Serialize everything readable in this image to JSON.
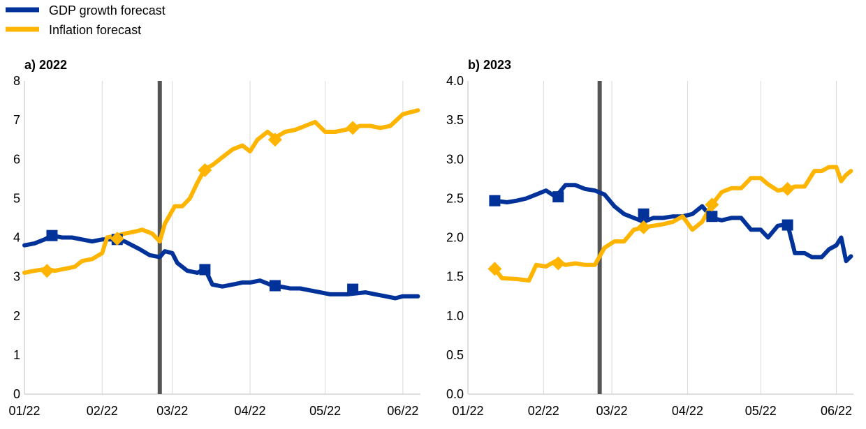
{
  "legend": [
    {
      "label": "GDP growth forecast",
      "color": "#003299"
    },
    {
      "label": "Inflation forecast",
      "color": "#FFB400"
    }
  ],
  "colors": {
    "gdp": "#003299",
    "inflation": "#FFB400",
    "event_line": "#555555",
    "grid": "#D9D9D9"
  },
  "x_ticks": [
    "01/22",
    "02/22",
    "03/22",
    "04/22",
    "05/22",
    "06/22"
  ],
  "chart_data": [
    {
      "type": "line",
      "title": "a) 2022",
      "xlabel": "",
      "ylabel": "",
      "x_ticks": [
        "01/22",
        "02/22",
        "03/22",
        "04/22",
        "05/22",
        "06/22"
      ],
      "ylim": [
        0,
        8
      ],
      "y_ticks": [
        "0",
        "1",
        "2",
        "3",
        "4",
        "5",
        "6",
        "7",
        "8"
      ],
      "grid": "vertical",
      "legend_position": "top-left",
      "event_line_date": "2022-02-24",
      "series": [
        {
          "name": "GDP growth forecast",
          "color": "#003299",
          "points": [
            [
              "2022-01-01",
              3.8
            ],
            [
              "2022-01-05",
              3.85
            ],
            [
              "2022-01-09",
              3.95
            ],
            [
              "2022-01-12",
              4.05
            ],
            [
              "2022-01-16",
              4.0
            ],
            [
              "2022-01-20",
              4.0
            ],
            [
              "2022-01-24",
              3.95
            ],
            [
              "2022-01-28",
              3.9
            ],
            [
              "2022-02-01",
              3.95
            ],
            [
              "2022-02-07",
              3.95
            ],
            [
              "2022-02-10",
              3.9
            ],
            [
              "2022-02-13",
              3.8
            ],
            [
              "2022-02-16",
              3.7
            ],
            [
              "2022-02-20",
              3.55
            ],
            [
              "2022-02-24",
              3.5
            ],
            [
              "2022-02-26",
              3.65
            ],
            [
              "2022-03-01",
              3.6
            ],
            [
              "2022-03-03",
              3.35
            ],
            [
              "2022-03-07",
              3.15
            ],
            [
              "2022-03-11",
              3.1
            ],
            [
              "2022-03-14",
              3.2
            ],
            [
              "2022-03-17",
              2.8
            ],
            [
              "2022-03-21",
              2.75
            ],
            [
              "2022-03-25",
              2.8
            ],
            [
              "2022-03-29",
              2.85
            ],
            [
              "2022-04-01",
              2.85
            ],
            [
              "2022-04-05",
              2.9
            ],
            [
              "2022-04-09",
              2.8
            ],
            [
              "2022-04-13",
              2.75
            ],
            [
              "2022-04-17",
              2.7
            ],
            [
              "2022-04-21",
              2.7
            ],
            [
              "2022-04-25",
              2.65
            ],
            [
              "2022-04-29",
              2.6
            ],
            [
              "2022-05-03",
              2.55
            ],
            [
              "2022-05-10",
              2.55
            ],
            [
              "2022-05-17",
              2.6
            ],
            [
              "2022-05-21",
              2.55
            ],
            [
              "2022-05-25",
              2.5
            ],
            [
              "2022-05-29",
              2.45
            ],
            [
              "2022-06-01",
              2.5
            ],
            [
              "2022-06-04",
              2.5
            ],
            [
              "2022-06-07",
              2.5
            ]
          ],
          "markers": [
            [
              "2022-01-12",
              4.05
            ],
            [
              "2022-02-07",
              3.95
            ],
            [
              "2022-03-14",
              3.18
            ],
            [
              "2022-04-11",
              2.77
            ],
            [
              "2022-05-12",
              2.68
            ]
          ]
        },
        {
          "name": "Inflation forecast",
          "color": "#FFB400",
          "points": [
            [
              "2022-01-01",
              3.1
            ],
            [
              "2022-01-05",
              3.15
            ],
            [
              "2022-01-10",
              3.2
            ],
            [
              "2022-01-13",
              3.15
            ],
            [
              "2022-01-17",
              3.2
            ],
            [
              "2022-01-21",
              3.25
            ],
            [
              "2022-01-24",
              3.4
            ],
            [
              "2022-01-28",
              3.45
            ],
            [
              "2022-02-01",
              3.6
            ],
            [
              "2022-02-03",
              4.0
            ],
            [
              "2022-02-07",
              4.05
            ],
            [
              "2022-02-10",
              4.1
            ],
            [
              "2022-02-14",
              4.15
            ],
            [
              "2022-02-17",
              4.2
            ],
            [
              "2022-02-21",
              4.1
            ],
            [
              "2022-02-24",
              3.9
            ],
            [
              "2022-02-26",
              4.35
            ],
            [
              "2022-03-02",
              4.8
            ],
            [
              "2022-03-05",
              4.8
            ],
            [
              "2022-03-08",
              5.0
            ],
            [
              "2022-03-11",
              5.4
            ],
            [
              "2022-03-14",
              5.75
            ],
            [
              "2022-03-17",
              5.85
            ],
            [
              "2022-03-21",
              6.05
            ],
            [
              "2022-03-25",
              6.25
            ],
            [
              "2022-03-29",
              6.35
            ],
            [
              "2022-04-01",
              6.2
            ],
            [
              "2022-04-04",
              6.5
            ],
            [
              "2022-04-08",
              6.7
            ],
            [
              "2022-04-11",
              6.55
            ],
            [
              "2022-04-15",
              6.7
            ],
            [
              "2022-04-19",
              6.75
            ],
            [
              "2022-04-23",
              6.85
            ],
            [
              "2022-04-27",
              6.95
            ],
            [
              "2022-05-01",
              6.7
            ],
            [
              "2022-05-05",
              6.7
            ],
            [
              "2022-05-09",
              6.75
            ],
            [
              "2022-05-12",
              6.8
            ],
            [
              "2022-05-15",
              6.85
            ],
            [
              "2022-05-19",
              6.85
            ],
            [
              "2022-05-23",
              6.8
            ],
            [
              "2022-05-27",
              6.85
            ],
            [
              "2022-06-01",
              7.15
            ],
            [
              "2022-06-07",
              7.25
            ]
          ],
          "markers": [
            [
              "2022-01-10",
              3.15
            ],
            [
              "2022-02-07",
              3.97
            ],
            [
              "2022-03-14",
              5.72
            ],
            [
              "2022-04-11",
              6.5
            ],
            [
              "2022-05-12",
              6.8
            ]
          ]
        }
      ]
    },
    {
      "type": "line",
      "title": "b) 2023",
      "xlabel": "",
      "ylabel": "",
      "x_ticks": [
        "01/22",
        "02/22",
        "03/22",
        "04/22",
        "05/22",
        "06/22"
      ],
      "ylim": [
        0,
        4
      ],
      "y_ticks": [
        "0.0",
        "0.5",
        "1.0",
        "1.5",
        "2.0",
        "2.5",
        "3.0",
        "3.5",
        "4.0"
      ],
      "grid": "vertical",
      "event_line_date": "2022-02-24",
      "series": [
        {
          "name": "GDP growth forecast",
          "color": "#003299",
          "points": [
            [
              "2022-01-12",
              2.47
            ],
            [
              "2022-01-17",
              2.45
            ],
            [
              "2022-01-21",
              2.47
            ],
            [
              "2022-01-25",
              2.5
            ],
            [
              "2022-01-29",
              2.55
            ],
            [
              "2022-02-02",
              2.6
            ],
            [
              "2022-02-06",
              2.52
            ],
            [
              "2022-02-10",
              2.67
            ],
            [
              "2022-02-14",
              2.67
            ],
            [
              "2022-02-18",
              2.62
            ],
            [
              "2022-02-22",
              2.6
            ],
            [
              "2022-02-26",
              2.55
            ],
            [
              "2022-03-02",
              2.4
            ],
            [
              "2022-03-06",
              2.3
            ],
            [
              "2022-03-10",
              2.25
            ],
            [
              "2022-03-14",
              2.2
            ],
            [
              "2022-03-18",
              2.25
            ],
            [
              "2022-03-22",
              2.25
            ],
            [
              "2022-03-26",
              2.27
            ],
            [
              "2022-03-30",
              2.27
            ],
            [
              "2022-04-03",
              2.3
            ],
            [
              "2022-04-07",
              2.4
            ],
            [
              "2022-04-11",
              2.25
            ],
            [
              "2022-04-15",
              2.22
            ],
            [
              "2022-04-19",
              2.25
            ],
            [
              "2022-04-23",
              2.25
            ],
            [
              "2022-04-27",
              2.1
            ],
            [
              "2022-05-01",
              2.1
            ],
            [
              "2022-05-04",
              2.0
            ],
            [
              "2022-05-08",
              2.15
            ],
            [
              "2022-05-12",
              2.17
            ],
            [
              "2022-05-15",
              1.8
            ],
            [
              "2022-05-19",
              1.8
            ],
            [
              "2022-05-22",
              1.75
            ],
            [
              "2022-05-26",
              1.75
            ],
            [
              "2022-05-29",
              1.85
            ],
            [
              "2022-06-01",
              1.9
            ],
            [
              "2022-06-03",
              2.0
            ],
            [
              "2022-06-05",
              1.7
            ],
            [
              "2022-06-07",
              1.76
            ]
          ],
          "markers": [
            [
              "2022-01-12",
              2.47
            ],
            [
              "2022-02-07",
              2.52
            ],
            [
              "2022-03-14",
              2.3
            ],
            [
              "2022-04-11",
              2.27
            ],
            [
              "2022-05-12",
              2.16
            ]
          ]
        },
        {
          "name": "Inflation forecast",
          "color": "#FFB400",
          "points": [
            [
              "2022-01-12",
              1.6
            ],
            [
              "2022-01-15",
              1.48
            ],
            [
              "2022-01-21",
              1.47
            ],
            [
              "2022-01-26",
              1.45
            ],
            [
              "2022-01-29",
              1.65
            ],
            [
              "2022-02-02",
              1.63
            ],
            [
              "2022-02-06",
              1.7
            ],
            [
              "2022-02-10",
              1.65
            ],
            [
              "2022-02-14",
              1.67
            ],
            [
              "2022-02-18",
              1.65
            ],
            [
              "2022-02-22",
              1.65
            ],
            [
              "2022-02-26",
              1.87
            ],
            [
              "2022-03-02",
              1.95
            ],
            [
              "2022-03-06",
              1.95
            ],
            [
              "2022-03-10",
              2.1
            ],
            [
              "2022-03-14",
              2.13
            ],
            [
              "2022-03-18",
              2.15
            ],
            [
              "2022-03-22",
              2.17
            ],
            [
              "2022-03-26",
              2.2
            ],
            [
              "2022-03-30",
              2.27
            ],
            [
              "2022-04-03",
              2.1
            ],
            [
              "2022-04-07",
              2.2
            ],
            [
              "2022-04-11",
              2.42
            ],
            [
              "2022-04-15",
              2.58
            ],
            [
              "2022-04-19",
              2.63
            ],
            [
              "2022-04-23",
              2.63
            ],
            [
              "2022-04-27",
              2.76
            ],
            [
              "2022-05-01",
              2.76
            ],
            [
              "2022-05-04",
              2.68
            ],
            [
              "2022-05-08",
              2.6
            ],
            [
              "2022-05-12",
              2.62
            ],
            [
              "2022-05-15",
              2.65
            ],
            [
              "2022-05-19",
              2.65
            ],
            [
              "2022-05-23",
              2.85
            ],
            [
              "2022-05-26",
              2.85
            ],
            [
              "2022-05-29",
              2.9
            ],
            [
              "2022-06-01",
              2.9
            ],
            [
              "2022-06-03",
              2.72
            ],
            [
              "2022-06-05",
              2.8
            ],
            [
              "2022-06-07",
              2.85
            ]
          ],
          "markers": [
            [
              "2022-01-12",
              1.6
            ],
            [
              "2022-02-07",
              1.67
            ],
            [
              "2022-03-14",
              2.13
            ],
            [
              "2022-04-11",
              2.42
            ],
            [
              "2022-05-12",
              2.62
            ]
          ]
        }
      ]
    }
  ]
}
